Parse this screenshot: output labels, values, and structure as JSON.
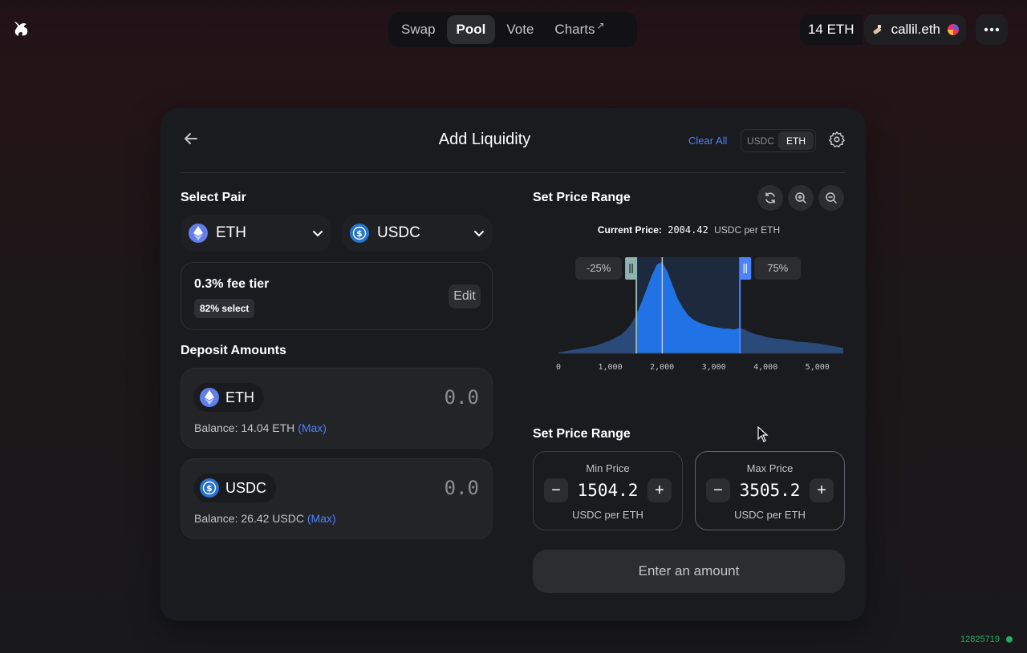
{
  "nav": {
    "items": [
      {
        "label": "Swap",
        "active": false
      },
      {
        "label": "Pool",
        "active": true
      },
      {
        "label": "Vote",
        "active": false
      },
      {
        "label": "Charts",
        "active": false,
        "external": "↗"
      }
    ]
  },
  "account": {
    "balance": "14 ETH",
    "name": "callil.eth"
  },
  "card": {
    "title": "Add Liquidity",
    "clear_all": "Clear All",
    "toggle": [
      "USDC",
      "ETH"
    ],
    "toggle_active": "ETH"
  },
  "select_pair": {
    "label": "Select Pair",
    "token_a": "ETH",
    "token_b": "USDC",
    "fee_tier": "0.3% fee tier",
    "fee_badge": "82% select",
    "edit": "Edit"
  },
  "deposit": {
    "label": "Deposit Amounts",
    "eth": {
      "token": "ETH",
      "amount": "0.0",
      "balance": "Balance: 14.04 ETH",
      "max": "(Max)"
    },
    "usdc": {
      "token": "USDC",
      "amount": "0.0",
      "balance": "Balance: 26.42 USDC",
      "max": "(Max)"
    }
  },
  "range": {
    "label": "Set Price Range",
    "current_price_label": "Current Price:",
    "current_price": "2004.42",
    "current_price_unit": "USDC per ETH",
    "min_pct": "-25%",
    "max_pct": "75%",
    "label2": "Set Price Range",
    "min_label": "Min Price",
    "min_value": "1504.2",
    "max_label": "Max Price",
    "max_value": "3505.2",
    "unit": "USDC per ETH",
    "submit": "Enter an amount"
  },
  "chart_data": {
    "type": "area",
    "x": [
      0,
      100,
      200,
      300,
      400,
      500,
      600,
      700,
      800,
      900,
      1000,
      1100,
      1200,
      1300,
      1400,
      1500,
      1600,
      1700,
      1800,
      1900,
      2000,
      2100,
      2200,
      2300,
      2400,
      2500,
      2600,
      2700,
      2800,
      2900,
      3000,
      3100,
      3200,
      3300,
      3400,
      3500,
      3600,
      3700,
      3800,
      3900,
      4000,
      4200,
      4400,
      4600,
      4800,
      5000,
      5200,
      5500
    ],
    "values": [
      0.01,
      0.02,
      0.03,
      0.04,
      0.05,
      0.06,
      0.07,
      0.08,
      0.1,
      0.12,
      0.14,
      0.17,
      0.2,
      0.25,
      0.32,
      0.42,
      0.55,
      0.7,
      0.85,
      0.97,
      1.0,
      0.9,
      0.75,
      0.6,
      0.5,
      0.42,
      0.37,
      0.34,
      0.32,
      0.3,
      0.29,
      0.28,
      0.27,
      0.27,
      0.26,
      0.28,
      0.26,
      0.23,
      0.21,
      0.2,
      0.18,
      0.16,
      0.15,
      0.13,
      0.12,
      0.11,
      0.09,
      0.06
    ],
    "tick_labels": [
      "0",
      "1,000",
      "2,000",
      "3,000",
      "4,000",
      "5,000"
    ],
    "tick_values": [
      0,
      1000,
      2000,
      3000,
      4000,
      5000
    ],
    "xlim": [
      0,
      5500
    ],
    "range_min": 1504.2,
    "range_max": 3505.2,
    "current_price": 2004.42,
    "grid": false
  },
  "footer": {
    "block": "12825719"
  },
  "colors": {
    "accent": "#4c82fb",
    "range_fill": "#2172e5",
    "block_status": "#27ae60"
  }
}
